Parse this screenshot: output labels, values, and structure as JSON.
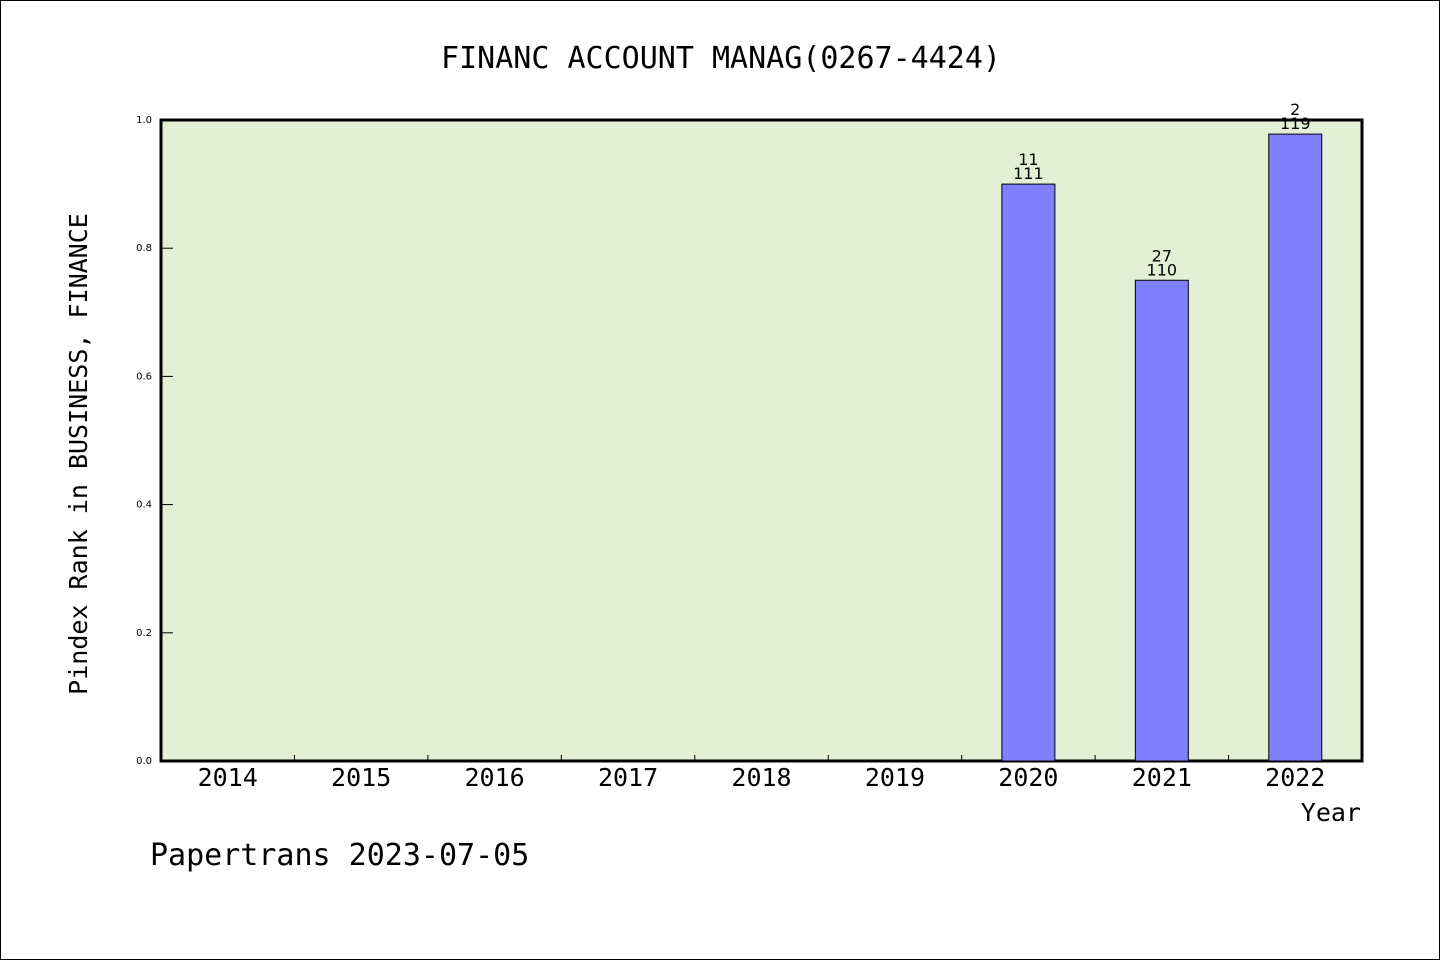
{
  "chart_data": {
    "type": "bar",
    "title": "FINANC ACCOUNT MANAG(0267-4424)",
    "xlabel": "Year",
    "ylabel": "Pindex Rank in BUSINESS, FINANCE",
    "categories": [
      "2014",
      "2015",
      "2016",
      "2017",
      "2018",
      "2019",
      "2020",
      "2021",
      "2022"
    ],
    "values": [
      null,
      null,
      null,
      null,
      null,
      null,
      0.9,
      0.75,
      0.978
    ],
    "bar_labels_top": [
      "",
      "",
      "",
      "",
      "",
      "",
      "11",
      "27",
      "2"
    ],
    "bar_labels_bottom": [
      "",
      "",
      "",
      "",
      "",
      "",
      "111",
      "110",
      "119"
    ],
    "ylim": [
      0,
      1.0
    ],
    "yticks": [
      "0.0",
      "0.2",
      "0.4",
      "0.6",
      "0.8",
      "1.0"
    ],
    "grid": false,
    "colors": {
      "bar": "#8080ff",
      "plot_bg": "#e2f0d6",
      "axis": "#000000"
    }
  },
  "footer": {
    "text": "Papertrans 2023-07-05"
  }
}
